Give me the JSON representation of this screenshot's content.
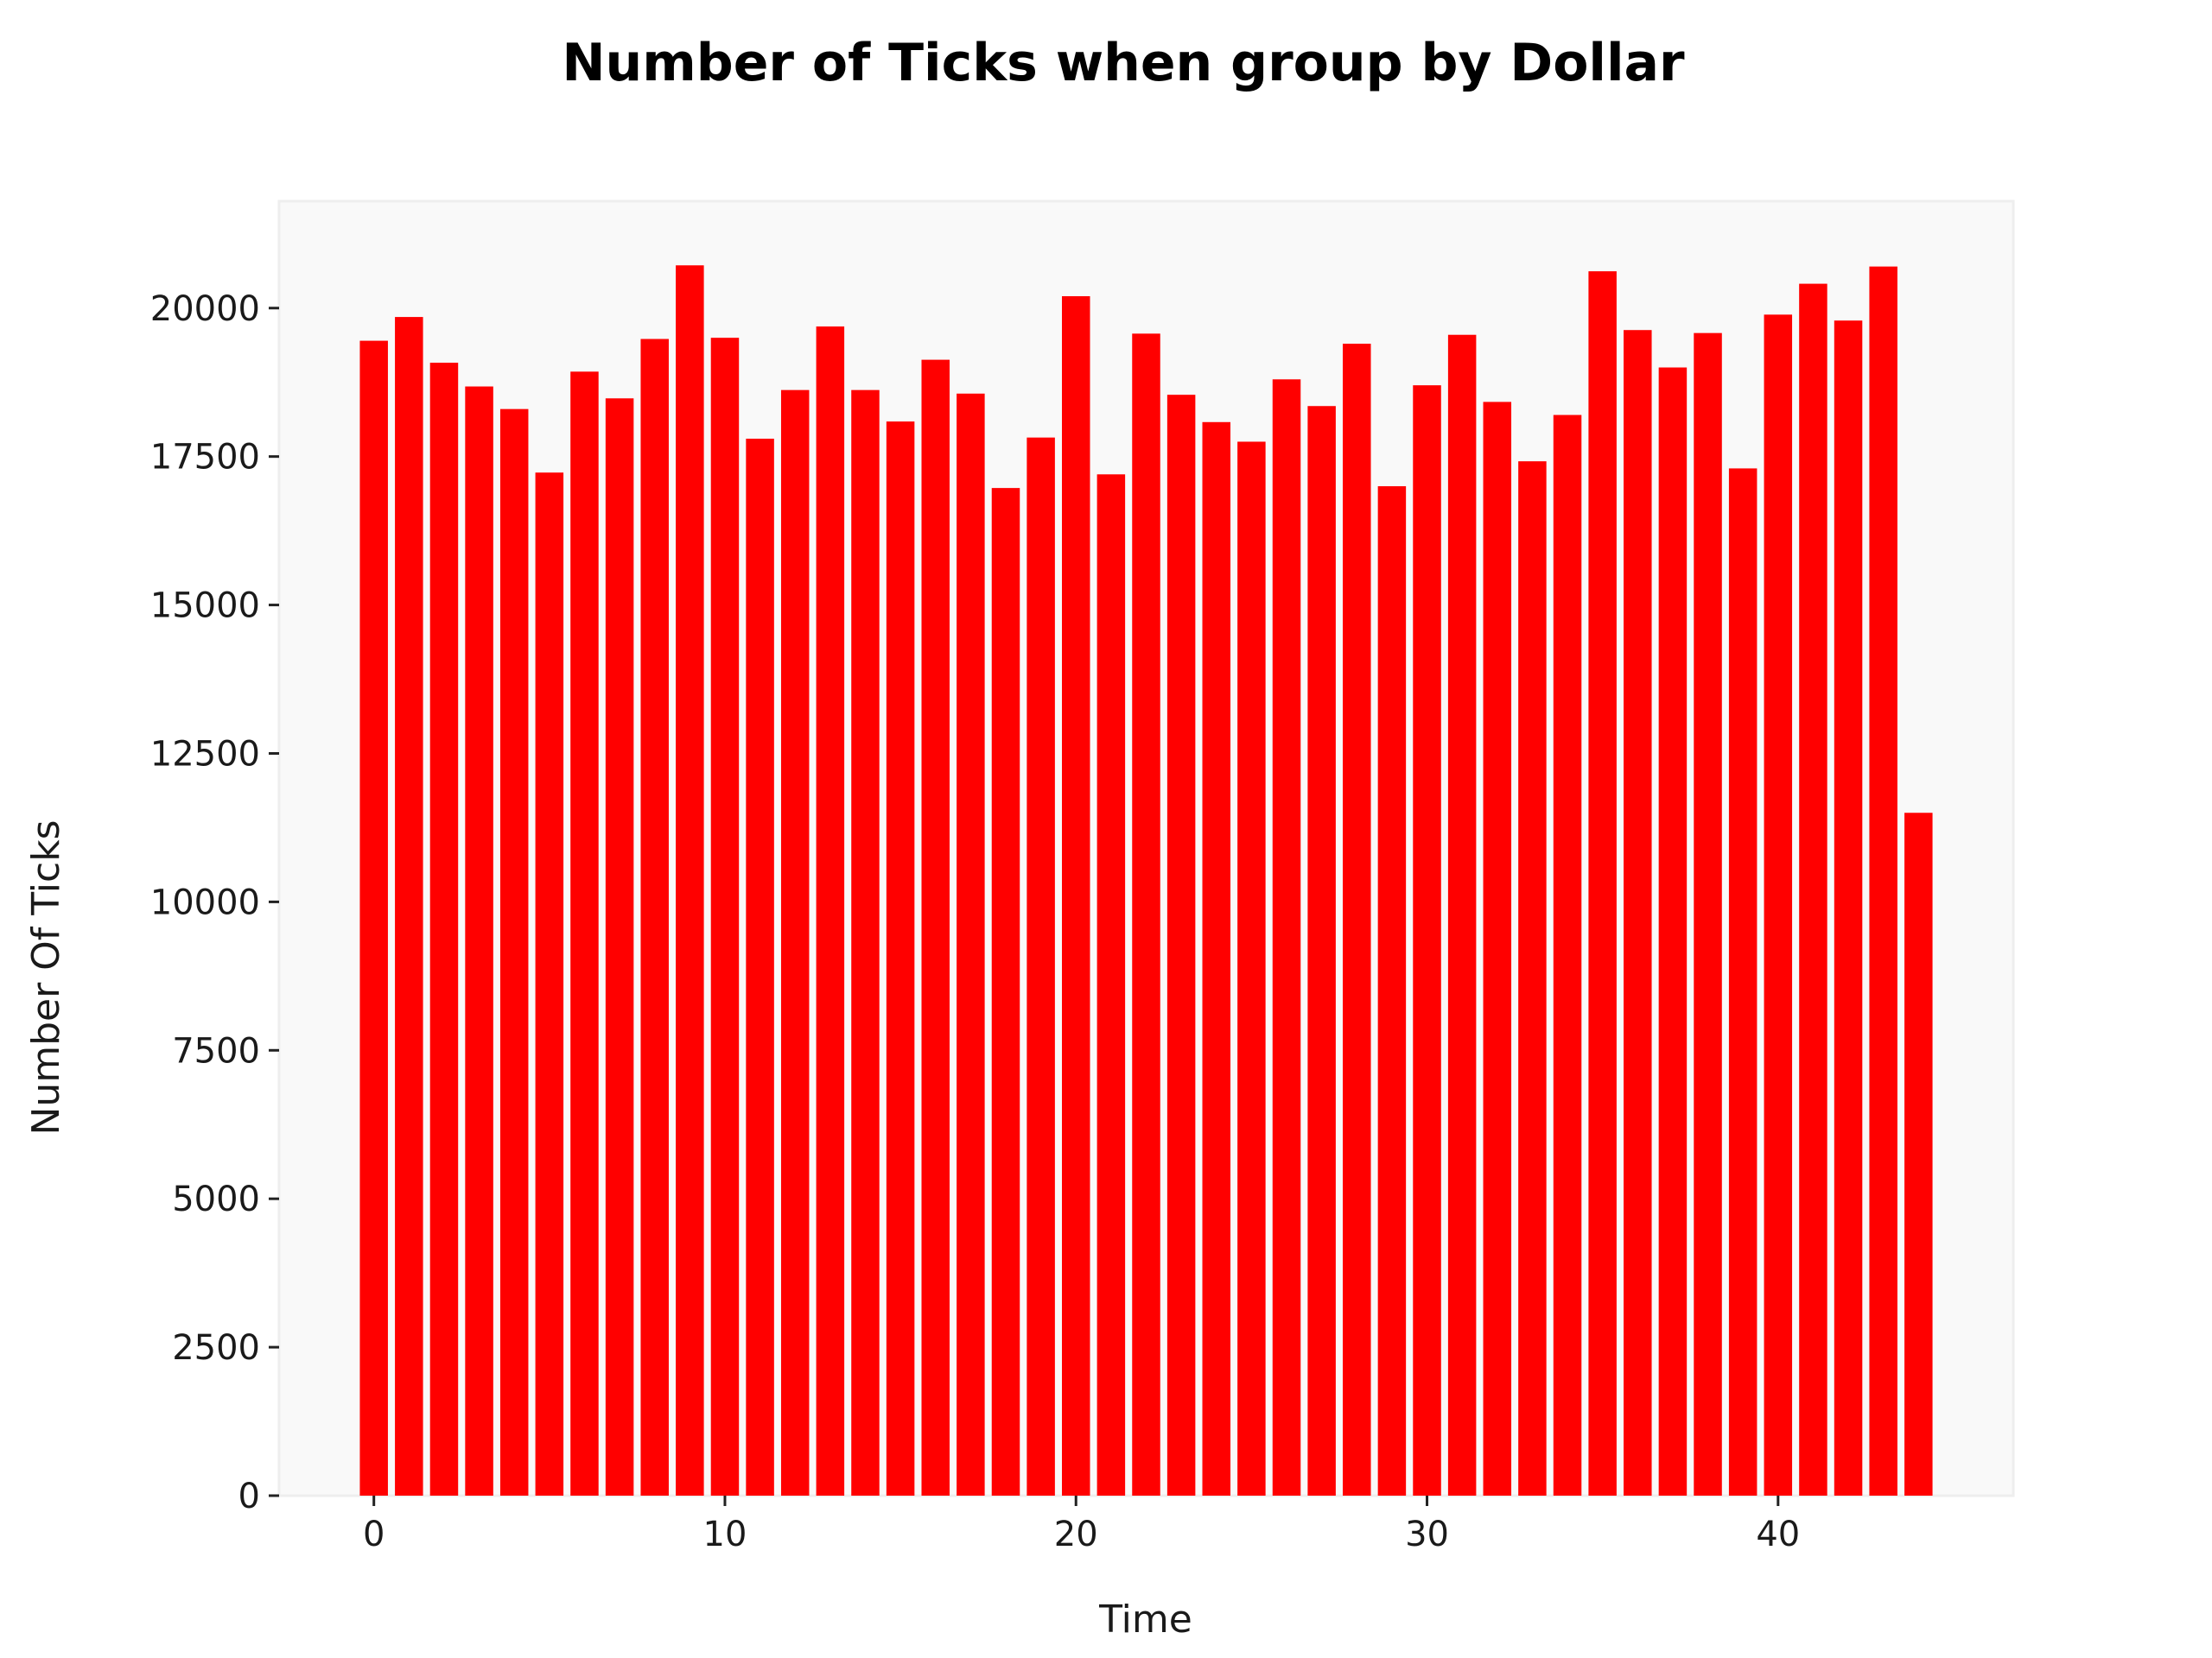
{
  "chart_data": {
    "type": "bar",
    "title": "Number of Ticks when group by Dollar",
    "xlabel": "Time",
    "ylabel": "Number Of Ticks",
    "bar_color": "#ff0000",
    "background_color": "#f9f9f9",
    "grid": false,
    "xlim": [
      -2.7,
      46.7
    ],
    "ylim": [
      0,
      21800
    ],
    "xticks": [
      0,
      10,
      20,
      30,
      40
    ],
    "yticks": [
      0,
      2500,
      5000,
      7500,
      10000,
      12500,
      15000,
      17500,
      20000
    ],
    "x": [
      0,
      1,
      2,
      3,
      4,
      5,
      6,
      7,
      8,
      9,
      10,
      11,
      12,
      13,
      14,
      15,
      16,
      17,
      18,
      19,
      20,
      21,
      22,
      23,
      24,
      25,
      26,
      27,
      28,
      29,
      30,
      31,
      32,
      33,
      34,
      35,
      36,
      37,
      38,
      39,
      40,
      41,
      42,
      43,
      44
    ],
    "values": [
      19450,
      19850,
      19080,
      18680,
      18300,
      17230,
      18930,
      18480,
      19480,
      20720,
      19500,
      17800,
      18620,
      19690,
      18620,
      18090,
      19130,
      18560,
      16970,
      17820,
      20200,
      17200,
      19570,
      18540,
      18080,
      17750,
      18800,
      18350,
      19400,
      17000,
      18700,
      19550,
      18420,
      17420,
      18200,
      20620,
      19630,
      19000,
      19580,
      17300,
      19890,
      20410,
      19790,
      20700,
      11500
    ]
  }
}
